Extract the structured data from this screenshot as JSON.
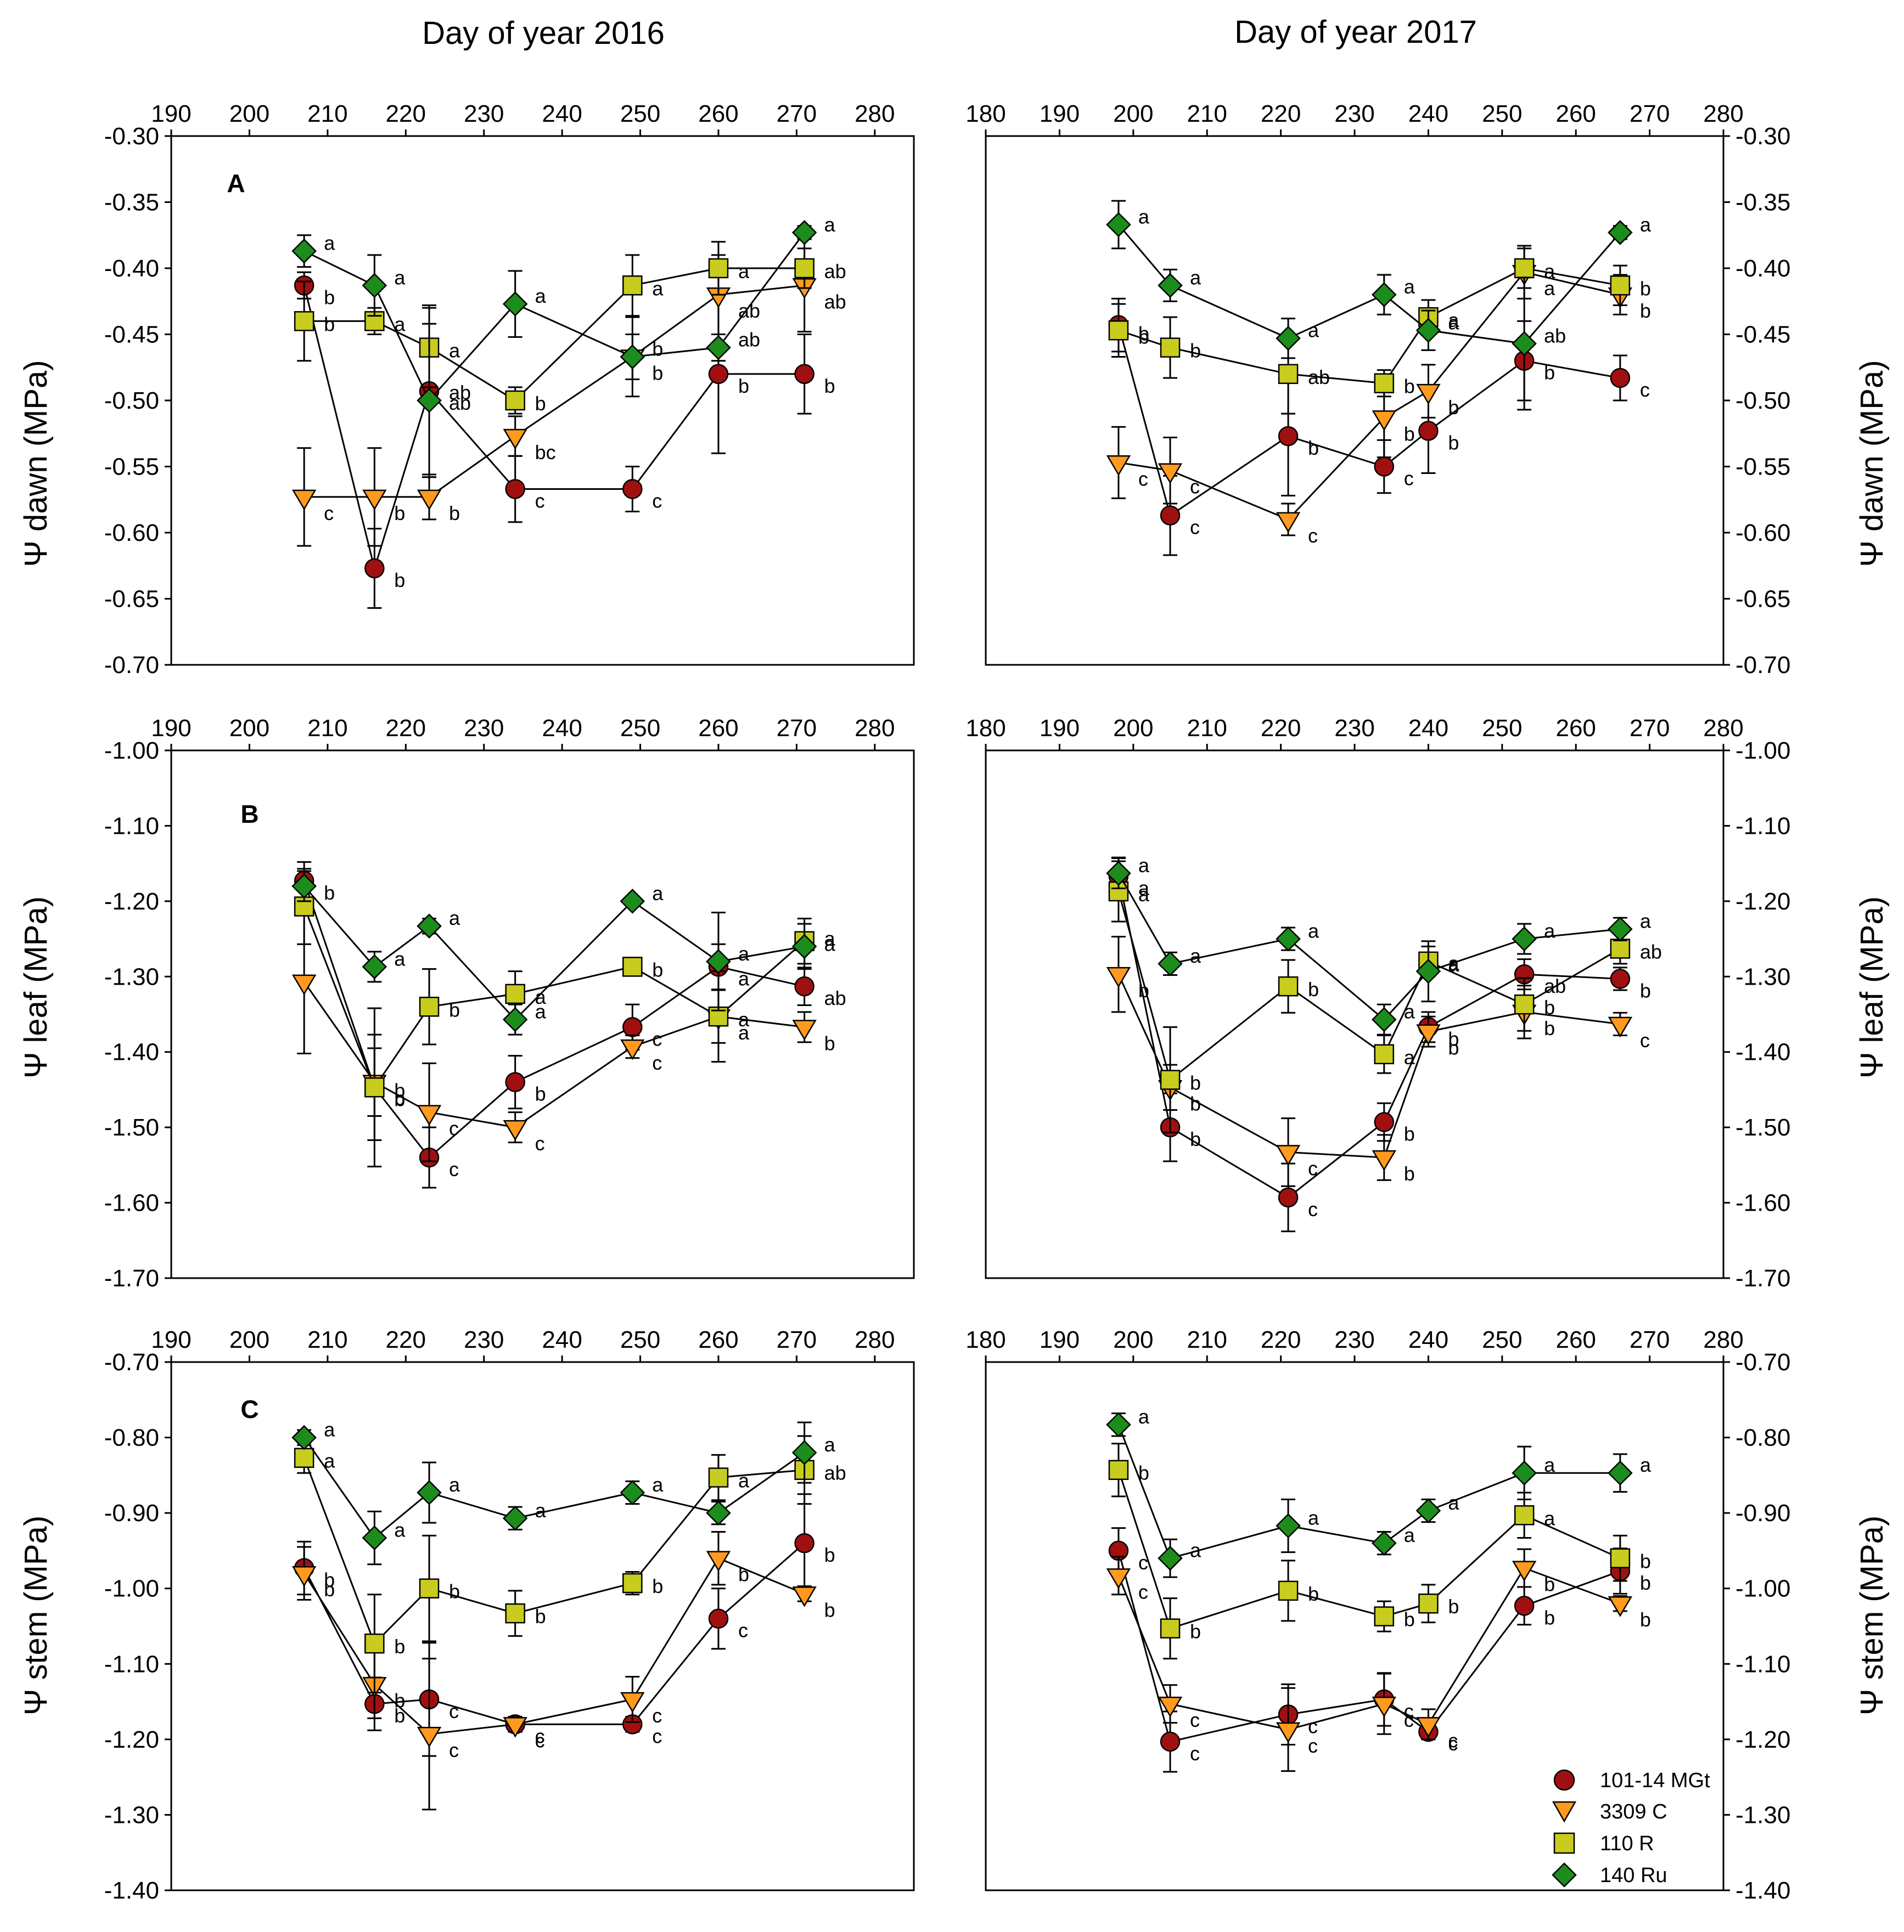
{
  "column_titles": [
    "Day of year 2016",
    "Day of year 2017"
  ],
  "y_axis_labels": [
    "Ψ dawn (MPa)",
    "Ψ leaf (MPa)",
    "Ψ stem (MPa)"
  ],
  "panel_labels": [
    "A",
    "B",
    "C"
  ],
  "legend": [
    {
      "name": "101-14 MGt",
      "marker": "circle",
      "color": "#a01010"
    },
    {
      "name": "3309 C",
      "marker": "triangle-down",
      "color": "#ff9a1e"
    },
    {
      "name": "110 R",
      "marker": "square",
      "color": "#c8cc1e"
    },
    {
      "name": "140 Ru",
      "marker": "diamond",
      "color": "#1c8c1c"
    }
  ],
  "chart_data": [
    {
      "type": "scatter",
      "panel": "A",
      "year": "2016",
      "ylabel": "Ψ dawn (MPa)",
      "xlim": [
        190,
        285
      ],
      "ylim": [
        -0.7,
        -0.3
      ],
      "xticks": [
        "190",
        "200",
        "210",
        "220",
        "230",
        "240",
        "250",
        "260",
        "270",
        "280"
      ],
      "yticks": [
        "-0.30",
        "-0.35",
        "-0.40",
        "-0.45",
        "-0.50",
        "-0.55",
        "-0.60",
        "-0.65",
        "-0.70"
      ],
      "x": [
        207,
        216,
        223,
        234,
        249,
        260,
        271
      ],
      "series": [
        {
          "name": "101-14 MGt",
          "y": [
            -0.413,
            -0.627,
            -0.493,
            -0.567,
            -0.567,
            -0.48,
            -0.48
          ],
          "err": [
            0.01,
            0.03,
            0.065,
            0.025,
            0.017,
            0.06,
            0.03
          ],
          "labels": [
            "b",
            "b",
            "ab",
            "c",
            "c",
            "b",
            "b"
          ]
        },
        {
          "name": "3309 C",
          "y": [
            -0.573,
            -0.573,
            -0.573,
            -0.527,
            -0.467,
            -0.42,
            -0.413
          ],
          "err": [
            0.037,
            0.037,
            0.017,
            0.015,
            0.03,
            0.03,
            0.035
          ],
          "labels": [
            "c",
            "b",
            "b",
            "bc",
            "b",
            "ab",
            "ab"
          ]
        },
        {
          "name": "110 R",
          "y": [
            -0.44,
            -0.44,
            -0.46,
            -0.5,
            -0.413,
            -0.4,
            -0.4
          ],
          "err": [
            0.03,
            0.01,
            0.03,
            0.01,
            0.023,
            0.02,
            0.015
          ],
          "labels": [
            "b",
            "a",
            "a",
            "b",
            "a",
            "a",
            "ab"
          ]
        },
        {
          "name": "140 Ru",
          "y": [
            -0.387,
            -0.413,
            -0.5,
            -0.427,
            -0.467,
            -0.46,
            -0.373
          ],
          "err": [
            0.012,
            0.023,
            0.058,
            0.025,
            0.017,
            0.01,
            0.005
          ],
          "labels": [
            "a",
            "a",
            "ab",
            "a",
            "b",
            "ab",
            "a"
          ]
        }
      ]
    },
    {
      "type": "scatter",
      "panel": "A",
      "year": "2017",
      "ylabel": "Ψ dawn (MPa)",
      "xlim": [
        180,
        280
      ],
      "ylim": [
        -0.7,
        -0.3
      ],
      "xticks": [
        "180",
        "190",
        "200",
        "210",
        "220",
        "230",
        "240",
        "250",
        "260",
        "270",
        "280"
      ],
      "yticks": [
        "-0.30",
        "-0.35",
        "-0.40",
        "-0.45",
        "-0.50",
        "-0.55",
        "-0.60",
        "-0.65",
        "-0.70"
      ],
      "x": [
        198,
        205,
        221,
        234,
        240,
        253,
        266
      ],
      "series": [
        {
          "name": "101-14 MGt",
          "y": [
            -0.443,
            -0.587,
            -0.527,
            -0.55,
            -0.523,
            -0.47,
            -0.483
          ],
          "err": [
            0.02,
            0.03,
            0.045,
            0.02,
            0.032,
            0.03,
            0.017
          ],
          "labels": [
            "b",
            "c",
            "b",
            "c",
            "b",
            "b",
            "c"
          ]
        },
        {
          "name": "3309 C",
          "y": [
            -0.547,
            -0.553,
            -0.59,
            -0.513,
            -0.493,
            -0.403,
            -0.42
          ],
          "err": [
            0.027,
            0.025,
            0.012,
            0.03,
            0.02,
            0.02,
            0.015
          ],
          "labels": [
            "c",
            "c",
            "c",
            "b",
            "b",
            "a",
            "b"
          ]
        },
        {
          "name": "110 R",
          "y": [
            -0.447,
            -0.46,
            -0.48,
            -0.487,
            -0.437,
            -0.4,
            -0.413
          ],
          "err": [
            0.02,
            0.023,
            0.03,
            0.01,
            0.013,
            0.015,
            0.015
          ],
          "labels": [
            "b",
            "b",
            "ab",
            "b",
            "a",
            "a",
            "b"
          ]
        },
        {
          "name": "140 Ru",
          "y": [
            -0.367,
            -0.413,
            -0.453,
            -0.42,
            -0.447,
            -0.457,
            -0.373
          ],
          "err": [
            0.018,
            0.012,
            0.015,
            0.015,
            0.015,
            0.05,
            0.005
          ],
          "labels": [
            "a",
            "a",
            "a",
            "a",
            "a",
            "ab",
            "a"
          ]
        }
      ]
    },
    {
      "type": "scatter",
      "panel": "B",
      "year": "2016",
      "ylabel": "Ψ leaf (MPa)",
      "xlim": [
        190,
        285
      ],
      "ylim": [
        -1.7,
        -1.0
      ],
      "xticks": [
        "190",
        "200",
        "210",
        "220",
        "230",
        "240",
        "250",
        "260",
        "270",
        "280"
      ],
      "yticks": [
        "-1.00",
        "-1.10",
        "-1.20",
        "-1.30",
        "-1.40",
        "-1.50",
        "-1.60",
        "-1.70"
      ],
      "x": [
        207,
        216,
        223,
        234,
        249,
        260,
        271
      ],
      "series": [
        {
          "name": "101-14 MGt",
          "y": [
            -1.173,
            -1.447,
            -1.54,
            -1.44,
            -1.367,
            -1.287,
            -1.313
          ],
          "err": [
            0.025,
            0.07,
            0.04,
            0.035,
            0.03,
            0.03,
            0.025
          ],
          "labels": [
            "b",
            "b",
            "c",
            "b",
            "c",
            "a",
            "ab"
          ]
        },
        {
          "name": "3309 C",
          "y": [
            -1.307,
            -1.44,
            -1.48,
            -1.5,
            -1.393,
            -1.353,
            -1.367
          ],
          "err": [
            0.095,
            0.045,
            0.065,
            0.02,
            0.015,
            0.035,
            0.02
          ],
          "labels": [
            "",
            "b",
            "c",
            "c",
            "c",
            "a",
            "b"
          ]
        },
        {
          "name": "110 R",
          "y": [
            -1.207,
            -1.447,
            -1.34,
            -1.323,
            -1.287,
            -1.353,
            -1.253
          ],
          "err": [
            0.05,
            0.105,
            0.05,
            0.03,
            0.01,
            0.06,
            0.03
          ],
          "labels": [
            "",
            "b",
            "b",
            "a",
            "b",
            "a",
            "a"
          ]
        },
        {
          "name": "140 Ru",
          "y": [
            -1.18,
            -1.287,
            -1.233,
            -1.357,
            -1.2,
            -1.28,
            -1.26
          ],
          "err": [
            0.02,
            0.02,
            0.01,
            0.02,
            0.005,
            0.065,
            0.03
          ],
          "labels": [
            "",
            "a",
            "a",
            "a",
            "a",
            "a",
            "a"
          ]
        }
      ]
    },
    {
      "type": "scatter",
      "panel": "B",
      "year": "2017",
      "ylabel": "Ψ leaf (MPa)",
      "xlim": [
        180,
        280
      ],
      "ylim": [
        -1.7,
        -1.0
      ],
      "xticks": [
        "180",
        "190",
        "200",
        "210",
        "220",
        "230",
        "240",
        "250",
        "260",
        "270",
        "280"
      ],
      "yticks": [
        "-1.00",
        "-1.10",
        "-1.20",
        "-1.30",
        "-1.40",
        "-1.50",
        "-1.60",
        "-1.70"
      ],
      "x": [
        198,
        205,
        221,
        234,
        240,
        253,
        266
      ],
      "series": [
        {
          "name": "101-14 MGt",
          "y": [
            -1.167,
            -1.5,
            -1.593,
            -1.493,
            -1.367,
            -1.297,
            -1.303
          ],
          "err": [
            0.025,
            0.045,
            0.045,
            0.025,
            0.02,
            0.02,
            0.015
          ],
          "labels": [
            "a",
            "b",
            "c",
            "b",
            "b",
            "ab",
            "b"
          ]
        },
        {
          "name": "3309 C",
          "y": [
            -1.297,
            -1.447,
            -1.533,
            -1.54,
            -1.373,
            -1.347,
            -1.363
          ],
          "err": [
            0.05,
            0.03,
            0.045,
            0.03,
            0.02,
            0.035,
            0.015
          ],
          "labels": [
            "b",
            "b",
            "c",
            "b",
            "b",
            "b",
            "c"
          ]
        },
        {
          "name": "110 R",
          "y": [
            -1.187,
            -1.437,
            -1.313,
            -1.403,
            -1.28,
            -1.337,
            -1.263
          ],
          "err": [
            0.04,
            0.07,
            0.035,
            0.025,
            0.02,
            0.035,
            0.02
          ],
          "labels": [
            "a",
            "b",
            "b",
            "a",
            "a",
            "b",
            "ab"
          ]
        },
        {
          "name": "140 Ru",
          "y": [
            -1.163,
            -1.283,
            -1.25,
            -1.357,
            -1.293,
            -1.25,
            -1.237
          ],
          "err": [
            0.02,
            0.015,
            0.015,
            0.02,
            0.04,
            0.02,
            0.015
          ],
          "labels": [
            "a",
            "a",
            "a",
            "a",
            "a",
            "a",
            "a"
          ]
        }
      ]
    },
    {
      "type": "scatter",
      "panel": "C",
      "year": "2016",
      "ylabel": "Ψ stem (MPa)",
      "xlim": [
        190,
        285
      ],
      "ylim": [
        -1.4,
        -0.7
      ],
      "xticks": [
        "190",
        "200",
        "210",
        "220",
        "230",
        "240",
        "250",
        "260",
        "270",
        "280"
      ],
      "yticks": [
        "-0.70",
        "-0.80",
        "-0.90",
        "-1.00",
        "-1.10",
        "-1.20",
        "-1.30",
        "-1.40"
      ],
      "x": [
        207,
        216,
        223,
        234,
        249,
        260,
        271
      ],
      "series": [
        {
          "name": "101-14 MGt",
          "y": [
            -0.973,
            -1.153,
            -1.147,
            -1.18,
            -1.18,
            -1.04,
            -0.94
          ],
          "err": [
            0.035,
            0.035,
            0.075,
            0.01,
            0.01,
            0.04,
            0.065
          ],
          "labels": [
            "b",
            "b",
            "c",
            "c",
            "c",
            "c",
            "b"
          ]
        },
        {
          "name": "3309 C",
          "y": [
            -0.98,
            -1.127,
            -1.193,
            -1.18,
            -1.147,
            -0.96,
            -1.007
          ],
          "err": [
            0.035,
            0.045,
            0.1,
            0.01,
            0.03,
            0.035,
            0.01
          ],
          "labels": [
            "b",
            "b",
            "c",
            "c",
            "c",
            "b",
            "b"
          ]
        },
        {
          "name": "110 R",
          "y": [
            -0.827,
            -1.073,
            -1.0,
            -1.033,
            -0.993,
            -0.853,
            -0.843
          ],
          "err": [
            0.02,
            0.065,
            0.07,
            0.03,
            0.015,
            0.03,
            0.045
          ],
          "labels": [
            "a",
            "b",
            "b",
            "b",
            "b",
            "a",
            "ab"
          ]
        },
        {
          "name": "140 Ru",
          "y": [
            -0.8,
            -0.933,
            -0.873,
            -0.907,
            -0.873,
            -0.9,
            -0.82
          ],
          "err": [
            0.01,
            0.035,
            0.04,
            0.015,
            0.015,
            0.015,
            0.04
          ],
          "labels": [
            "a",
            "a",
            "a",
            "a",
            "a",
            "",
            "a"
          ]
        }
      ]
    },
    {
      "type": "scatter",
      "panel": "C",
      "year": "2017",
      "ylabel": "Ψ stem (MPa)",
      "xlim": [
        180,
        280
      ],
      "ylim": [
        -1.4,
        -0.7
      ],
      "xticks": [
        "180",
        "190",
        "200",
        "210",
        "220",
        "230",
        "240",
        "250",
        "260",
        "270",
        "280"
      ],
      "yticks": [
        "-0.70",
        "-0.80",
        "-0.90",
        "-1.00",
        "-1.10",
        "-1.20",
        "-1.30",
        "-1.40"
      ],
      "x": [
        198,
        205,
        221,
        234,
        240,
        253,
        266
      ],
      "series": [
        {
          "name": "101-14 MGt",
          "y": [
            -0.95,
            -1.203,
            -1.167,
            -1.147,
            -1.19,
            -1.023,
            -0.977
          ],
          "err": [
            0.03,
            0.04,
            0.04,
            0.035,
            0.01,
            0.025,
            0.03
          ],
          "labels": [
            "c",
            "c",
            "c",
            "c",
            "c",
            "b",
            "b"
          ]
        },
        {
          "name": "3309 C",
          "y": [
            -0.983,
            -1.153,
            -1.187,
            -1.153,
            -1.18,
            -0.973,
            -1.02
          ],
          "err": [
            0.025,
            0.025,
            0.055,
            0.04,
            0.02,
            0.025,
            0.01
          ],
          "labels": [
            "c",
            "c",
            "c",
            "c",
            "c",
            "b",
            "b"
          ]
        },
        {
          "name": "110 R",
          "y": [
            -0.843,
            -1.053,
            -1.003,
            -1.037,
            -1.02,
            -0.903,
            -0.96
          ],
          "err": [
            0.035,
            0.04,
            0.04,
            0.02,
            0.025,
            0.03,
            0.03
          ],
          "labels": [
            "b",
            "b",
            "b",
            "b",
            "b",
            "a",
            "b"
          ]
        },
        {
          "name": "140 Ru",
          "y": [
            -0.783,
            -0.96,
            -0.917,
            -0.94,
            -0.897,
            -0.847,
            -0.847
          ],
          "err": [
            0.015,
            0.025,
            0.035,
            0.015,
            0.015,
            0.035,
            0.025
          ],
          "labels": [
            "a",
            "a",
            "a",
            "a",
            "a",
            "a",
            "a"
          ]
        }
      ]
    }
  ]
}
